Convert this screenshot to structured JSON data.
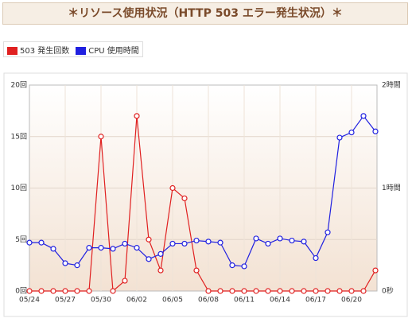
{
  "title": "＊リソース使用状況（HTTP 503 エラー発生状況）＊",
  "chart_data": {
    "type": "line",
    "categories": [
      "05/24",
      null,
      null,
      "05/27",
      null,
      null,
      "05/30",
      null,
      null,
      "06/02",
      null,
      null,
      "06/05",
      null,
      null,
      "06/08",
      null,
      null,
      "06/11",
      null,
      null,
      "06/14",
      null,
      null,
      "06/17",
      null,
      null,
      "06/20",
      null,
      null
    ],
    "series": [
      {
        "name": "503 発生回数",
        "color": "#e02020",
        "values": [
          0,
          0,
          0,
          0,
          0,
          0,
          15,
          0,
          1,
          17,
          5,
          2,
          10,
          9,
          2,
          0,
          0,
          0,
          0,
          0,
          0,
          0,
          0,
          0,
          0,
          0,
          0,
          0,
          0,
          2
        ]
      },
      {
        "name": "CPU 使用時間",
        "color": "#2020e0",
        "axis": "y2",
        "values": [
          0.47,
          0.47,
          0.41,
          0.27,
          0.25,
          0.42,
          0.42,
          0.41,
          0.46,
          0.42,
          0.31,
          0.36,
          0.46,
          0.46,
          0.49,
          0.48,
          0.47,
          0.25,
          0.24,
          0.51,
          0.46,
          0.51,
          0.49,
          0.48,
          0.32,
          0.57,
          1.49,
          1.54,
          1.7,
          1.55
        ]
      }
    ],
    "ylim": [
      0,
      20
    ],
    "yticks": [
      {
        "value": 0,
        "label": "0回"
      },
      {
        "value": 5,
        "label": "5回"
      },
      {
        "value": 10,
        "label": "10回"
      },
      {
        "value": 15,
        "label": "15回"
      },
      {
        "value": 20,
        "label": "20回"
      }
    ],
    "y2lim": [
      0,
      2
    ],
    "y2ticks": [
      {
        "value": 0,
        "label": "0秒"
      },
      {
        "value": 1,
        "label": "1時間"
      },
      {
        "value": 2,
        "label": "2時間"
      }
    ],
    "grid": true
  }
}
